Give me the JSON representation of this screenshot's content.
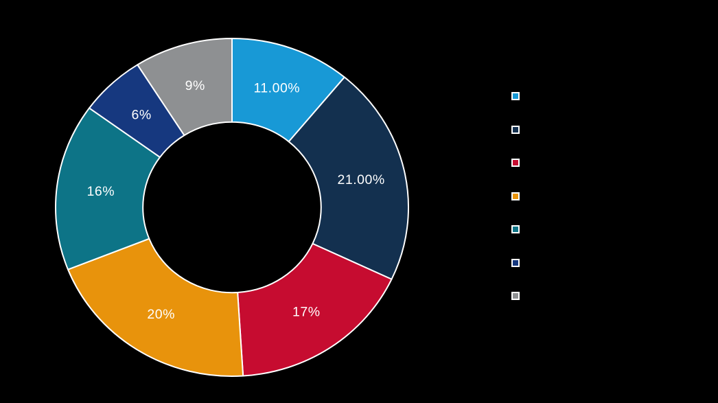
{
  "page": {
    "background": "#000000"
  },
  "chart_data": {
    "type": "pie",
    "subtype": "donut",
    "direction": "clockwise",
    "start_angle_deg": 0,
    "donut_hole_ratio": 0.505,
    "slice_border_color": "#ffffff",
    "label_color": "#ffffff",
    "slices": [
      {
        "value": 11,
        "label": "11.00%",
        "color": "#1899d6"
      },
      {
        "value": 21,
        "label": "21.00%",
        "color": "#13304f"
      },
      {
        "value": 17,
        "label": "17%",
        "color": "#c60c30"
      },
      {
        "value": 20,
        "label": "20%",
        "color": "#e8930c"
      },
      {
        "value": 16,
        "label": "16%",
        "color": "#0d7487"
      },
      {
        "value": 6,
        "label": "6%",
        "color": "#16387f"
      },
      {
        "value": 9,
        "label": "9%",
        "color": "#8e9092"
      }
    ],
    "legend": {
      "position": "right",
      "marker_border_color": "#ffffff",
      "labels_visible": false,
      "marker_colors": [
        "#1899d6",
        "#13304f",
        "#c60c30",
        "#e8930c",
        "#0d7487",
        "#16387f",
        "#8e9092"
      ]
    }
  }
}
